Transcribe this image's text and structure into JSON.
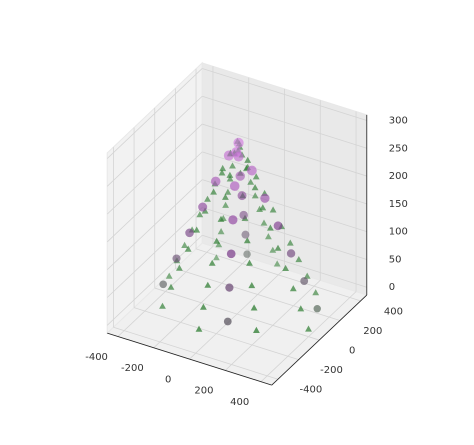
{
  "chart_data": {
    "type": "scatter3d",
    "xlim": [
      -460,
      460
    ],
    "ylim": [
      -460,
      460
    ],
    "zlim": [
      -14,
      310
    ],
    "xticks": [
      -400,
      -200,
      0,
      200,
      400
    ],
    "yticks": [
      -400,
      -200,
      0,
      200,
      400
    ],
    "zticks": [
      0,
      50,
      100,
      150,
      200,
      250,
      300
    ],
    "grid": true,
    "series": [
      {
        "marker": "^",
        "color": "#2e7d32",
        "x": [
          400,
          279,
          0,
          -272,
          -379,
          -264,
          0,
          256,
          357,
          249,
          0,
          -241,
          -336,
          -234,
          0,
          226,
          315,
          219,
          0,
          -211,
          -293,
          -204,
          0,
          196,
          272,
          189,
          0,
          -181,
          -251,
          -173,
          0,
          166,
          229,
          158,
          0,
          -151,
          -208,
          -143,
          0,
          136,
          187,
          128,
          0,
          -121,
          -165,
          -113,
          0,
          106,
          144,
          98,
          0,
          -91,
          -123,
          -83,
          0,
          75,
          101,
          68,
          0,
          -60,
          -80,
          -53,
          0,
          45,
          59,
          38,
          0,
          -30,
          -37,
          -23,
          0,
          15,
          16,
          8,
          0
        ],
        "y": [
          0,
          279,
          389,
          272,
          0,
          -264,
          -368,
          -256,
          0,
          249,
          347,
          241,
          0,
          -234,
          -325,
          -226,
          0,
          219,
          304,
          211,
          0,
          -204,
          -283,
          -196,
          0,
          189,
          261,
          181,
          0,
          -173,
          -240,
          -166,
          0,
          158,
          219,
          151,
          0,
          -143,
          -197,
          -136,
          0,
          128,
          176,
          121,
          0,
          -113,
          -155,
          -106,
          0,
          98,
          133,
          91,
          0,
          -83,
          -112,
          -75,
          0,
          68,
          91,
          60,
          0,
          -53,
          -69,
          -45,
          0,
          38,
          48,
          30,
          0,
          -23,
          -27,
          -15,
          0,
          8,
          5
        ],
        "z": [
          0,
          4,
          8,
          12,
          16,
          20,
          24,
          28,
          32,
          36,
          40,
          44,
          48,
          52,
          56,
          60,
          64,
          68,
          72,
          76,
          80,
          84,
          88,
          92,
          96,
          100,
          104,
          108,
          112,
          116,
          120,
          124,
          128,
          132,
          136,
          140,
          144,
          148,
          152,
          156,
          160,
          164,
          168,
          172,
          176,
          180,
          184,
          188,
          192,
          196,
          200,
          204,
          208,
          212,
          216,
          220,
          224,
          228,
          232,
          236,
          240,
          244,
          248,
          252,
          256,
          260,
          264,
          268,
          272,
          276,
          280,
          284,
          288,
          292,
          296
        ]
      },
      {
        "marker": "o",
        "cmap": [
          "#4e6b4e",
          "#7e3a8e",
          "#dc82ea"
        ],
        "x": [
          362,
          -144,
          -333,
          132,
          303,
          -119,
          -273,
          107,
          244,
          -95,
          -214,
          83,
          185,
          -70,
          -155,
          58,
          126,
          -46,
          -96,
          34,
          67,
          -21,
          -37,
          9,
          7
        ],
        "y": [
          150,
          347,
          -138,
          -318,
          126,
          288,
          -113,
          -259,
          101,
          229,
          -89,
          -200,
          77,
          170,
          -64,
          -140,
          52,
          111,
          -40,
          -81,
          28,
          52,
          -15,
          -22,
          3
        ],
        "z": [
          6,
          18,
          30,
          42,
          54,
          66,
          78,
          90,
          102,
          114,
          126,
          138,
          150,
          162,
          174,
          186,
          198,
          210,
          222,
          234,
          246,
          258,
          270,
          282,
          294
        ]
      }
    ]
  }
}
